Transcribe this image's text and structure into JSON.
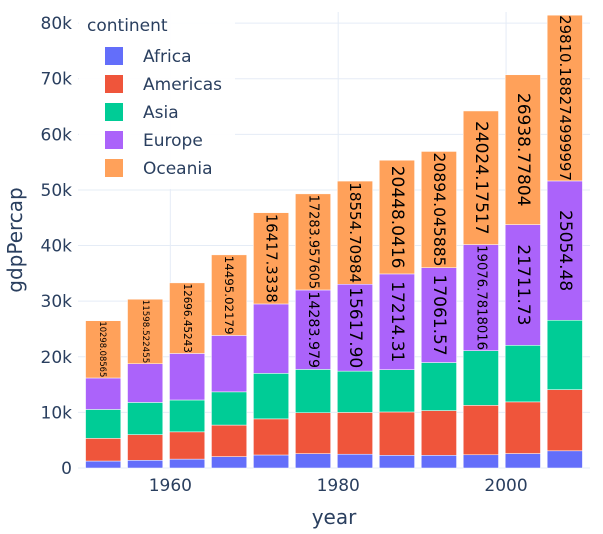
{
  "chart_data": {
    "type": "bar",
    "barmode": "stack",
    "xlabel": "year",
    "ylabel": "gdpPercap",
    "ylim": [
      0,
      82000
    ],
    "xlim": [
      1949,
      2010
    ],
    "x": [
      1952,
      1957,
      1962,
      1967,
      1972,
      1977,
      1982,
      1987,
      1992,
      1997,
      2002,
      2007
    ],
    "xticks": [
      1960,
      1980,
      2000
    ],
    "xtick_labels": [
      "1960",
      "1980",
      "2000"
    ],
    "yticks": [
      0,
      10000,
      20000,
      30000,
      40000,
      50000,
      60000,
      70000,
      80000
    ],
    "ytick_labels": [
      "0",
      "10k",
      "20k",
      "30k",
      "40k",
      "50k",
      "60k",
      "70k",
      "80k"
    ],
    "grid": true,
    "legend": {
      "title": "continent",
      "position": "top-left"
    },
    "series": [
      {
        "name": "Africa",
        "color": "#636efa",
        "values": [
          1252.57,
          1385.24,
          1598.08,
          2050.36,
          2339.62,
          2585.94,
          2481.59,
          2282.67,
          2281.81,
          2378.76,
          2599.39,
          3089.03
        ],
        "labels": [
          "",
          "",
          "",
          "",
          "",
          "",
          "",
          "",
          "",
          "",
          "",
          ""
        ]
      },
      {
        "name": "Americas",
        "color": "#ef553b",
        "values": [
          4079.06,
          4616.04,
          4901.54,
          5668.25,
          6491.33,
          7352.01,
          7506.74,
          7793.4,
          8044.93,
          8889.3,
          9287.68,
          11003.61
        ],
        "labels": [
          "",
          "",
          "",
          "",
          "",
          "",
          "",
          "",
          "",
          "",
          "",
          ""
        ]
      },
      {
        "name": "Asia",
        "color": "#00cc96",
        "values": [
          5195.48,
          5787.73,
          5729.37,
          5971.17,
          8187.47,
          7791.31,
          7434.14,
          7608.23,
          8639.69,
          9834.09,
          10174.09,
          12473.03
        ],
        "labels": [
          "",
          "",
          "",
          "",
          "",
          "",
          "",
          "",
          "",
          "",
          "",
          ""
        ]
      },
      {
        "name": "Europe",
        "color": "#ab63fa",
        "values": [
          5661.06,
          6963.01,
          8365.49,
          10143.82,
          12479.58,
          14283.98,
          15617.9,
          17214.31,
          17061.57,
          19076.78,
          21711.73,
          25054.48
        ],
        "labels": [
          "",
          "",
          "",
          "",
          "",
          "14283.979",
          "15617.90",
          "17214.31",
          "17061.57",
          "19076.7818016",
          "21711.73",
          "25054.48"
        ]
      },
      {
        "name": "Oceania",
        "color": "#ffa15a",
        "values": [
          10298.09,
          11598.52,
          12696.45,
          14495.02,
          16417.33,
          17283.96,
          18554.71,
          20448.04,
          20894.05,
          24024.18,
          26938.78,
          29810.19
        ],
        "labels": [
          "10298.08565",
          "11598.522455",
          "12696.45243",
          "14495.02179",
          "16417.3338",
          "17283.957605",
          "18554.70984",
          "20448.0416",
          "20894.045885",
          "24024.17517",
          "26938.77804",
          "29810.188274999997"
        ]
      }
    ]
  }
}
